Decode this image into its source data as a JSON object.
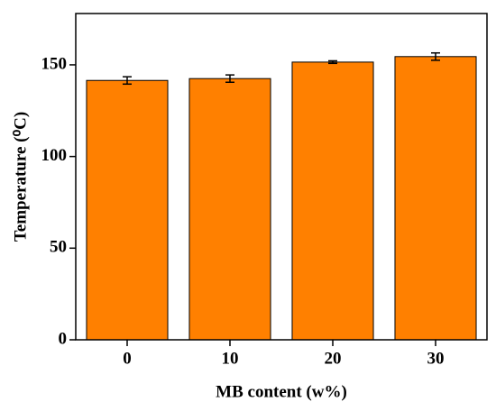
{
  "chart_data": {
    "type": "bar",
    "x_label": "MB content (w%)",
    "y_label": "Temperature (⁰C)",
    "categories": [
      "0",
      "10",
      "20",
      "30"
    ],
    "values": [
      141.5,
      142.5,
      151.5,
      154.5
    ],
    "errors": [
      2,
      2,
      0.7,
      2
    ],
    "color": "#ff8000",
    "ylim": [
      0,
      178
    ],
    "yticks": [
      0,
      50,
      100,
      150
    ]
  }
}
